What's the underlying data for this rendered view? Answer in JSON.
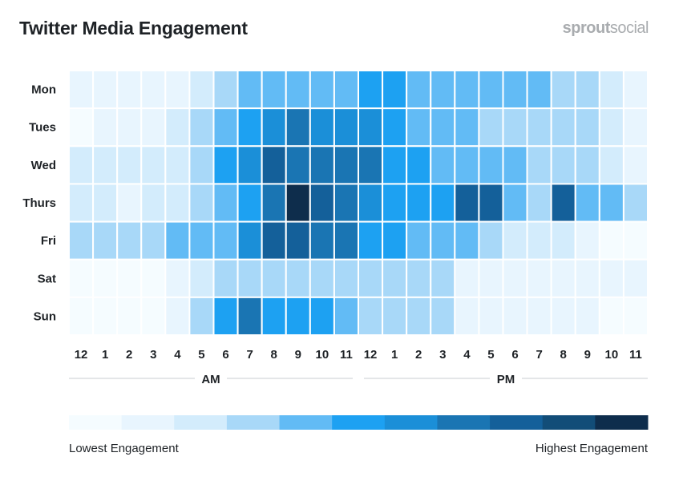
{
  "chart_data": {
    "type": "heatmap",
    "title": "Twitter Media Engagement",
    "rows": [
      "Mon",
      "Tues",
      "Wed",
      "Thurs",
      "Fri",
      "Sat",
      "Sun"
    ],
    "columns": [
      "12",
      "1",
      "2",
      "3",
      "4",
      "5",
      "6",
      "7",
      "8",
      "9",
      "10",
      "11",
      "12",
      "1",
      "2",
      "3",
      "4",
      "5",
      "6",
      "7",
      "8",
      "9",
      "10",
      "11"
    ],
    "period_labels": [
      "AM",
      "PM"
    ],
    "levels": 11,
    "values": [
      [
        1,
        1,
        1,
        1,
        1,
        2,
        3,
        4,
        4,
        4,
        4,
        4,
        5,
        5,
        4,
        4,
        4,
        4,
        4,
        4,
        3,
        3,
        2,
        1
      ],
      [
        0,
        1,
        1,
        1,
        2,
        3,
        4,
        5,
        6,
        7,
        6,
        6,
        6,
        5,
        4,
        4,
        4,
        3,
        3,
        3,
        3,
        3,
        2,
        1
      ],
      [
        2,
        2,
        2,
        2,
        2,
        3,
        5,
        6,
        8,
        7,
        7,
        7,
        7,
        5,
        5,
        4,
        4,
        4,
        4,
        3,
        3,
        3,
        2,
        1
      ],
      [
        2,
        2,
        1,
        2,
        2,
        3,
        4,
        5,
        7,
        10,
        8,
        7,
        6,
        5,
        5,
        5,
        8,
        8,
        4,
        3,
        8,
        4,
        4,
        3
      ],
      [
        3,
        3,
        3,
        3,
        4,
        4,
        4,
        6,
        8,
        8,
        7,
        7,
        5,
        5,
        4,
        4,
        4,
        3,
        2,
        2,
        2,
        1,
        0,
        0
      ],
      [
        0,
        0,
        0,
        0,
        1,
        2,
        3,
        3,
        3,
        3,
        3,
        3,
        3,
        3,
        3,
        3,
        1,
        1,
        1,
        1,
        1,
        1,
        1,
        1
      ],
      [
        0,
        0,
        0,
        0,
        1,
        3,
        5,
        7,
        5,
        5,
        5,
        4,
        3,
        3,
        3,
        3,
        1,
        1,
        1,
        1,
        1,
        1,
        0,
        0
      ]
    ],
    "color_scale": [
      "#f5fcff",
      "#e8f5fe",
      "#d3ecfc",
      "#a8d8f8",
      "#62bbf5",
      "#1da1f2",
      "#1b8fd8",
      "#1a75b3",
      "#14609a",
      "#124d78",
      "#0e2d4c"
    ],
    "legend": {
      "low_label": "Lowest Engagement",
      "high_label": "Highest Engagement",
      "placement": "bottom"
    }
  },
  "brand": {
    "logo_bold": "sprout",
    "logo_light": "social"
  }
}
